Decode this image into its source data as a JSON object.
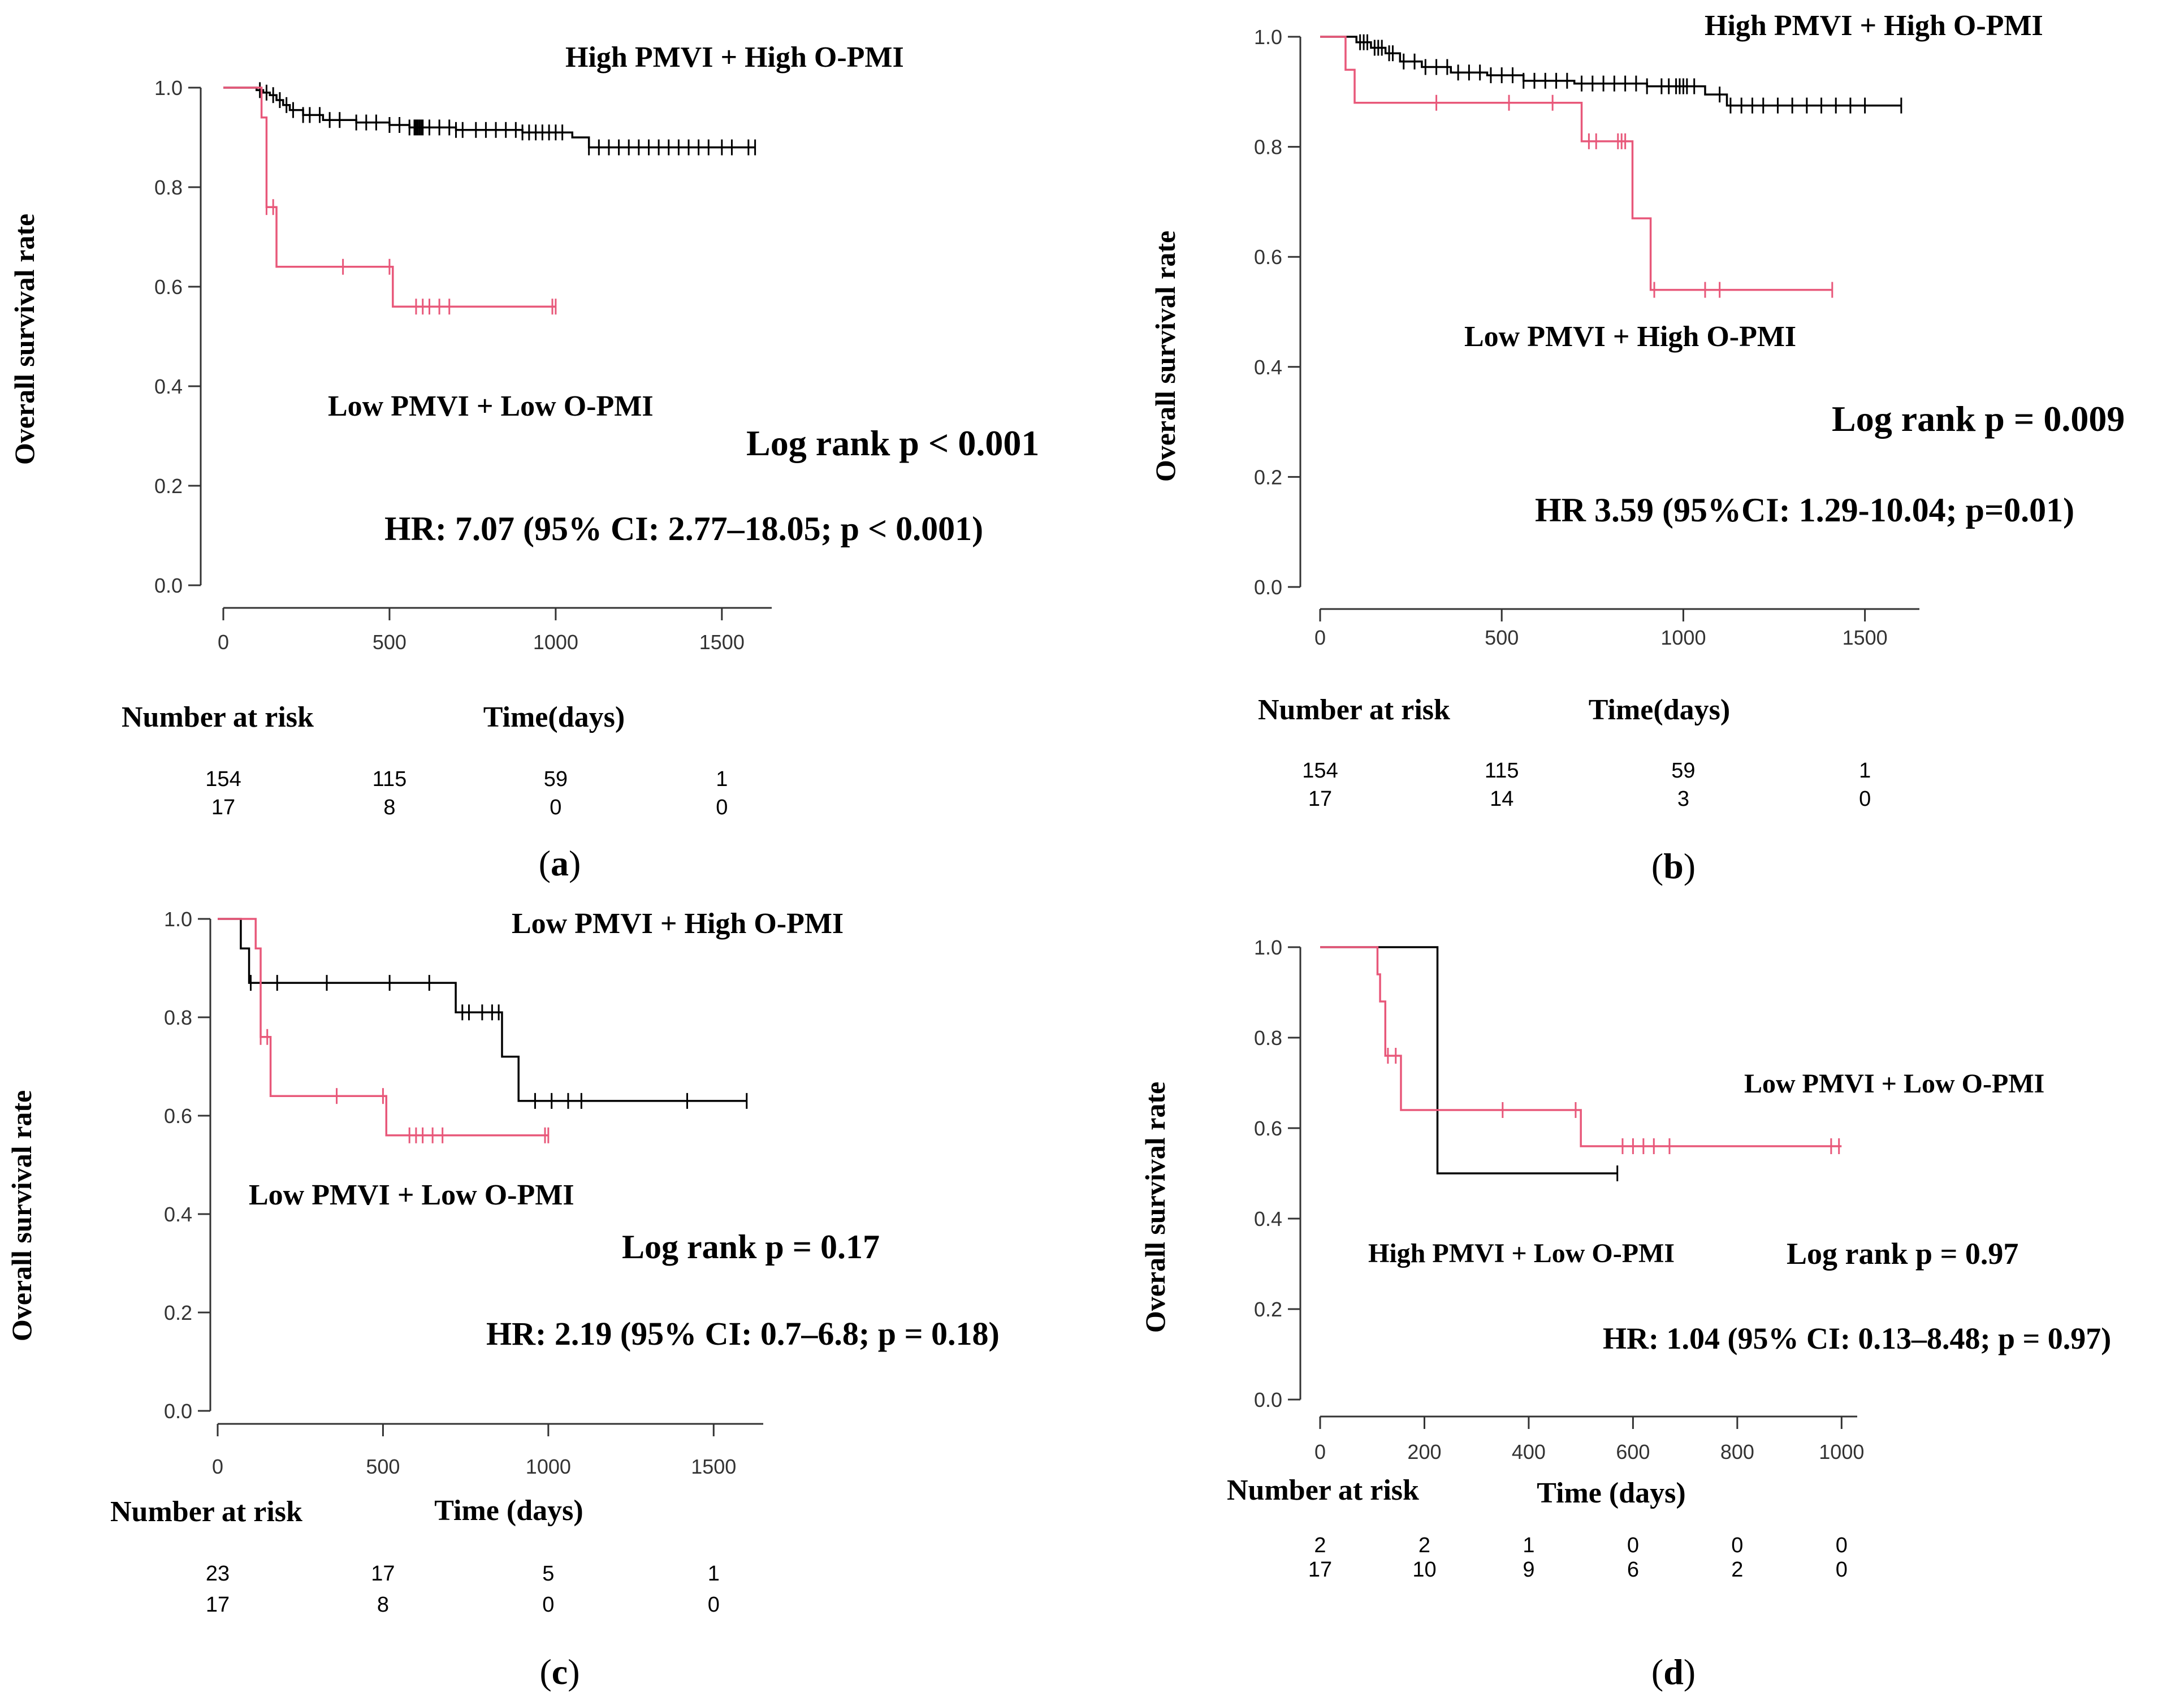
{
  "chart_data": [
    {
      "type": "line",
      "panel_label": [
        "(",
        "a",
        ")"
      ],
      "ylabel": "Overall survival rate",
      "xlabel": "Time(days)",
      "xticks": [
        0,
        500,
        1000,
        1500
      ],
      "yticks": [
        0.0,
        0.2,
        0.4,
        0.6,
        0.8,
        1.0
      ],
      "ytick_labels": [
        "0.0",
        "0.2",
        "0.4",
        "0.6",
        "0.8",
        "1.0"
      ],
      "xlim": [
        0,
        1650
      ],
      "ylim": [
        0,
        1.05
      ],
      "series": [
        {
          "name": "High PMVI + High O-PMI",
          "color": "#000000",
          "x": [
            0,
            100,
            120,
            140,
            160,
            180,
            200,
            240,
            300,
            400,
            500,
            560,
            700,
            900,
            1050,
            1100,
            1600
          ],
          "y": [
            1.0,
            0.995,
            0.99,
            0.985,
            0.975,
            0.965,
            0.955,
            0.945,
            0.935,
            0.93,
            0.925,
            0.92,
            0.915,
            0.91,
            0.9,
            0.88,
            0.88
          ],
          "censor_x": [
            110,
            130,
            150,
            170,
            190,
            210,
            240,
            260,
            290,
            320,
            350,
            400,
            430,
            460,
            500,
            530,
            560,
            575,
            580,
            585,
            590,
            595,
            600,
            620,
            650,
            680,
            700,
            720,
            760,
            790,
            820,
            850,
            880,
            900,
            920,
            940,
            960,
            980,
            1000,
            1020,
            1100,
            1130,
            1160,
            1190,
            1220,
            1250,
            1280,
            1310,
            1340,
            1370,
            1400,
            1430,
            1460,
            1500,
            1530,
            1580,
            1600
          ]
        },
        {
          "name": "Low PMVI + Low O-PMI",
          "color": "#e8587a",
          "x": [
            0,
            100,
            115,
            130,
            160,
            510,
            1000
          ],
          "y": [
            1.0,
            1.0,
            0.94,
            0.76,
            0.64,
            0.56,
            0.56
          ],
          "censor_x": [
            130,
            150,
            360,
            500,
            580,
            600,
            620,
            650,
            680,
            990,
            1000
          ]
        }
      ],
      "annotations": [
        {
          "text": "High PMVI + High O-PMI"
        },
        {
          "text": "Low PMVI + Low O-PMI"
        },
        {
          "text": "Log rank p < 0.001"
        },
        {
          "text": "HR: 7.07 (95% CI: 2.77–18.05; p < 0.001)"
        }
      ],
      "risk_table": {
        "title": "Number at risk",
        "rows": [
          [
            "154",
            "115",
            "59",
            "1"
          ],
          [
            "17",
            "8",
            "0",
            "0"
          ]
        ]
      }
    },
    {
      "type": "line",
      "panel_label": [
        "(",
        "b",
        ")"
      ],
      "ylabel": "Overall survival rate",
      "xlabel": "Time(days)",
      "xticks": [
        0,
        500,
        1000,
        1500
      ],
      "yticks": [
        0.0,
        0.2,
        0.4,
        0.6,
        0.8,
        1.0
      ],
      "ytick_labels": [
        "0.0",
        "0.2",
        "0.4",
        "0.6",
        "0.8",
        "1.0"
      ],
      "xlim": [
        0,
        1650
      ],
      "ylim": [
        0,
        1.05
      ],
      "series": [
        {
          "name": "High PMVI + High O-PMI",
          "color": "#000000",
          "x": [
            0,
            100,
            140,
            180,
            220,
            280,
            360,
            460,
            560,
            700,
            900,
            1060,
            1120,
            1600
          ],
          "y": [
            1.0,
            0.99,
            0.98,
            0.97,
            0.955,
            0.945,
            0.935,
            0.93,
            0.92,
            0.915,
            0.91,
            0.895,
            0.875,
            0.875
          ],
          "censor_x": [
            110,
            120,
            130,
            150,
            160,
            170,
            190,
            200,
            230,
            260,
            290,
            320,
            350,
            380,
            410,
            440,
            470,
            500,
            530,
            560,
            590,
            620,
            650,
            680,
            720,
            750,
            780,
            810,
            840,
            870,
            900,
            940,
            960,
            980,
            990,
            1000,
            1010,
            1030,
            1100,
            1130,
            1160,
            1190,
            1220,
            1260,
            1300,
            1340,
            1380,
            1420,
            1460,
            1500,
            1600
          ]
        },
        {
          "name": "Low PMVI + High O-PMI",
          "color": "#e8587a",
          "x": [
            0,
            70,
            95,
            720,
            860,
            910,
            1410
          ],
          "y": [
            1.0,
            0.94,
            0.88,
            0.81,
            0.67,
            0.54,
            0.54
          ],
          "censor_x": [
            320,
            520,
            640,
            740,
            760,
            820,
            830,
            840,
            920,
            1060,
            1100,
            1410
          ]
        }
      ],
      "annotations": [
        {
          "text": "High PMVI + High O-PMI"
        },
        {
          "text": "Low PMVI + High O-PMI"
        },
        {
          "text": "Log rank p = 0.009"
        },
        {
          "text": "HR 3.59 (95%CI: 1.29-10.04; p=0.01)"
        }
      ],
      "risk_table": {
        "title": "Number at risk",
        "rows": [
          [
            "154",
            "115",
            "59",
            "1"
          ],
          [
            "17",
            "14",
            "3",
            "0"
          ]
        ]
      }
    },
    {
      "type": "line",
      "panel_label": [
        "(",
        "c",
        ")"
      ],
      "ylabel": "Overall survival rate",
      "xlabel": "Time (days)",
      "xticks": [
        0,
        500,
        1000,
        1500
      ],
      "yticks": [
        0.0,
        0.2,
        0.4,
        0.6,
        0.8,
        1.0
      ],
      "ytick_labels": [
        "0.0",
        "0.2",
        "0.4",
        "0.6",
        "0.8",
        "1.0"
      ],
      "xlim": [
        0,
        1650
      ],
      "ylim": [
        0,
        1.05
      ],
      "series": [
        {
          "name": "Low PMVI + High O-PMI",
          "color": "#000000",
          "x": [
            0,
            70,
            95,
            720,
            860,
            910,
            1600
          ],
          "y": [
            1.0,
            0.94,
            0.87,
            0.81,
            0.72,
            0.63,
            0.63
          ],
          "censor_x": [
            100,
            180,
            330,
            520,
            640,
            740,
            760,
            800,
            830,
            850,
            960,
            1010,
            1060,
            1100,
            1420,
            1600
          ]
        },
        {
          "name": "Low PMVI + Low O-PMI",
          "color": "#e8587a",
          "x": [
            0,
            100,
            115,
            130,
            160,
            510,
            1000
          ],
          "y": [
            1.0,
            1.0,
            0.94,
            0.76,
            0.64,
            0.56,
            0.56
          ],
          "censor_x": [
            130,
            150,
            360,
            500,
            580,
            600,
            620,
            650,
            680,
            990,
            1000
          ]
        }
      ],
      "annotations": [
        {
          "text": "Low PMVI + High O-PMI"
        },
        {
          "text": "Low PMVI + Low O-PMI"
        },
        {
          "text": "Log rank p = 0.17"
        },
        {
          "text": "HR: 2.19 (95% CI: 0.7–6.8; p = 0.18)"
        }
      ],
      "risk_table": {
        "title": "Number at risk",
        "rows": [
          [
            "23",
            "17",
            "5",
            "1"
          ],
          [
            "17",
            "8",
            "0",
            "0"
          ]
        ]
      }
    },
    {
      "type": "line",
      "panel_label": [
        "(",
        "d",
        ")"
      ],
      "ylabel": "Overall survival rate",
      "xlabel": "Time (days)",
      "xticks": [
        0,
        200,
        400,
        600,
        800,
        1000
      ],
      "yticks": [
        0.0,
        0.2,
        0.4,
        0.6,
        0.8,
        1.0
      ],
      "ytick_labels": [
        "0.0",
        "0.2",
        "0.4",
        "0.6",
        "0.8",
        "1.0"
      ],
      "xlim": [
        0,
        1030
      ],
      "ylim": [
        0,
        1.05
      ],
      "series": [
        {
          "name": "High PMVI + Low O-PMI",
          "color": "#000000",
          "x": [
            0,
            225,
            570
          ],
          "y": [
            1.0,
            0.5,
            0.5
          ],
          "censor_x": [
            570
          ]
        },
        {
          "name": "Low PMVI + Low O-PMI",
          "color": "#e8587a",
          "x": [
            0,
            110,
            115,
            125,
            155,
            500,
            1000
          ],
          "y": [
            1.0,
            0.94,
            0.88,
            0.76,
            0.64,
            0.56,
            0.56
          ],
          "censor_x": [
            130,
            145,
            350,
            490,
            580,
            600,
            620,
            640,
            670,
            980,
            995
          ]
        }
      ],
      "annotations": [
        {
          "text": "Low PMVI + Low O-PMI"
        },
        {
          "text": "High PMVI + Low O-PMI"
        },
        {
          "text": "Log rank p = 0.97"
        },
        {
          "text": "HR: 1.04 (95% CI: 0.13–8.48; p = 0.97)"
        }
      ],
      "risk_table": {
        "title": "Number at risk",
        "rows": [
          [
            "2",
            "2",
            "1",
            "0",
            "0",
            "0"
          ],
          [
            "17",
            "10",
            "9",
            "6",
            "2",
            "0"
          ]
        ]
      }
    }
  ]
}
